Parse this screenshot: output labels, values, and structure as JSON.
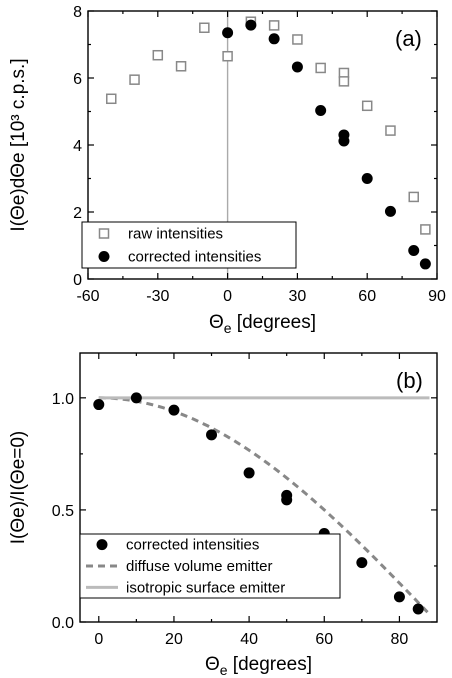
{
  "chart_data": [
    {
      "type": "scatter",
      "panel_label": "(a)",
      "xlabel_main": "Θ",
      "xlabel_sub": "e",
      "xlabel_rest": " [degrees]",
      "ylabel": "I(Θe)dΘe [10³ c.p.s.]",
      "xlim": [
        -60,
        90
      ],
      "ylim": [
        0,
        8
      ],
      "xticks": [
        -60,
        -30,
        0,
        30,
        60,
        90
      ],
      "yticks": [
        0,
        2,
        4,
        6,
        8
      ],
      "vline_at_x": 0,
      "legend_placement": "bottom-left",
      "series": [
        {
          "name": "raw intensities",
          "marker": "open-square",
          "color": "#888888",
          "x": [
            -50,
            -40,
            -30,
            -20,
            -10,
            0,
            10,
            20,
            30,
            40,
            50,
            50,
            60,
            70,
            80,
            85
          ],
          "y": [
            5.38,
            5.95,
            6.68,
            6.35,
            7.5,
            6.65,
            7.68,
            7.57,
            7.15,
            6.3,
            6.15,
            5.9,
            5.17,
            4.43,
            2.45,
            1.48
          ]
        },
        {
          "name": "corrected intensities",
          "marker": "filled-circle",
          "color": "#000000",
          "x": [
            0,
            10,
            20,
            30,
            40,
            50,
            50,
            60,
            70,
            80,
            85
          ],
          "y": [
            7.35,
            7.58,
            7.17,
            6.33,
            5.03,
            4.3,
            4.12,
            3.0,
            2.02,
            0.85,
            0.45
          ]
        }
      ]
    },
    {
      "type": "scatter",
      "panel_label": "(b)",
      "xlabel_main": "Θ",
      "xlabel_sub": "e",
      "xlabel_rest": " [degrees]",
      "ylabel": "I(Θe)/I(Θe=0)",
      "xlim": [
        -5,
        90
      ],
      "ylim": [
        0,
        1.2
      ],
      "xticks": [
        0,
        20,
        40,
        60,
        80
      ],
      "yticks": [
        0.0,
        0.5,
        1.0
      ],
      "ytick_labels": [
        "0.0",
        "0.5",
        "1.0"
      ],
      "legend_placement": "bottom-left",
      "series": [
        {
          "name": "corrected intensities",
          "marker": "filled-circle",
          "color": "#000000",
          "x": [
            0,
            10,
            20,
            30,
            40,
            50,
            50,
            60,
            70,
            80,
            85
          ],
          "y": [
            0.97,
            1.0,
            0.945,
            0.835,
            0.665,
            0.565,
            0.545,
            0.395,
            0.265,
            0.112,
            0.058
          ]
        },
        {
          "name": "diffuse volume emitter",
          "style": "dashed-line",
          "color": "#888888",
          "function": "cos",
          "x_range": [
            0,
            88
          ]
        },
        {
          "name": "isotropic surface emitter",
          "style": "solid-line",
          "color": "#bbbbbb",
          "x": [
            0,
            88
          ],
          "y": [
            1.0,
            1.0
          ]
        }
      ]
    }
  ]
}
